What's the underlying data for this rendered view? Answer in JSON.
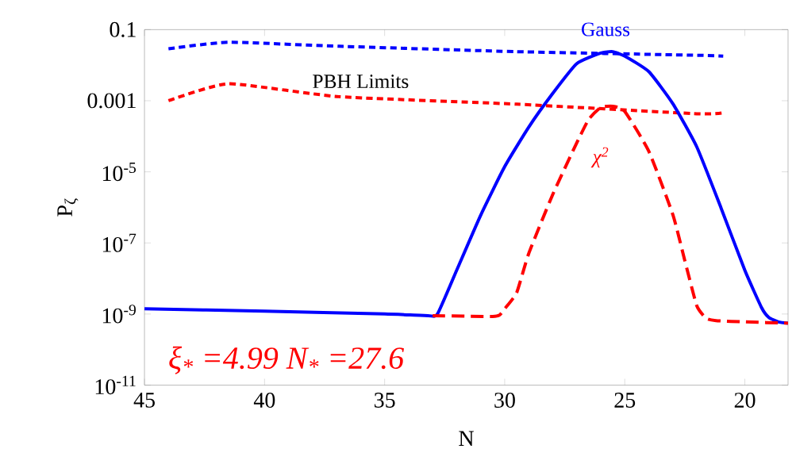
{
  "chart_data": {
    "type": "line",
    "xlabel": "N",
    "ylabel": "P$_{ζ}$",
    "xlim": [
      45,
      18.2
    ],
    "xticks": [
      45,
      40,
      35,
      30,
      25,
      20
    ],
    "ylim": [
      1e-11,
      0.1
    ],
    "log": "y",
    "yticks": [
      0.1,
      0.001,
      {
        "value": 1e-05,
        "label": "10$^{-5}$"
      },
      {
        "value": 1e-07,
        "label": "10$^{-7}$"
      },
      {
        "value": 1e-09,
        "label": "10$^{-9}$"
      },
      {
        "value": 1e-11,
        "label": "10$^{-11}$"
      }
    ],
    "series": [
      {
        "color": "#0000ff",
        "line_style": "dotted",
        "x": [
          44,
          41.5,
          36.9,
          29.5,
          22,
          20.9
        ],
        "values": [
          0.029,
          0.044,
          0.034,
          0.024,
          0.019,
          0.018
        ]
      },
      {
        "color": "#ff0000",
        "line_style": "dotted",
        "x": [
          44,
          41.5,
          36.9,
          29.5,
          22,
          20.9
        ],
        "values": [
          0.001,
          0.003,
          0.0013,
          0.0008,
          0.00043,
          0.00046
        ]
      },
      {
        "name": "Gauss",
        "color": "#0000ff",
        "line_style": "solid",
        "x": [
          45,
          40,
          35,
          33.2,
          32.8,
          32,
          31,
          30,
          29,
          28,
          27,
          26,
          25.5,
          25,
          24,
          23,
          22,
          21,
          20,
          19.3,
          19,
          18.6,
          18.2
        ],
        "values": [
          1.4e-09,
          1.2e-09,
          1e-09,
          9e-10,
          1e-09,
          1.7e-08,
          6e-07,
          1.4e-05,
          0.00018,
          0.0016,
          0.011,
          0.022,
          0.024,
          0.018,
          0.0066,
          0.00083,
          5e-05,
          1e-06,
          1.7e-08,
          1.5e-09,
          8e-10,
          6e-10,
          5.5e-10
        ]
      },
      {
        "name": "χ$^{2}$",
        "color": "#ff0000",
        "line_style": "dashed",
        "x": [
          33,
          30.5,
          30.2,
          30,
          29.5,
          29,
          28,
          27,
          26.5,
          26,
          25.5,
          25,
          24,
          23,
          22.5,
          22,
          21.6,
          21.2,
          20,
          18.2
        ],
        "values": [
          9e-10,
          8.5e-10,
          9.5e-10,
          1.4e-09,
          4e-09,
          5e-08,
          2.3e-06,
          6.5e-05,
          0.0003,
          0.00065,
          0.0007,
          0.0005,
          3.8e-05,
          6.3e-07,
          3.2e-08,
          1.7e-09,
          7.5e-10,
          6.5e-10,
          6e-10,
          5.5e-10
        ]
      }
    ],
    "annotations": [
      "PBH Limits",
      "ξ$_{*}$ =4.99 N$_{*}$ =27.6"
    ]
  }
}
